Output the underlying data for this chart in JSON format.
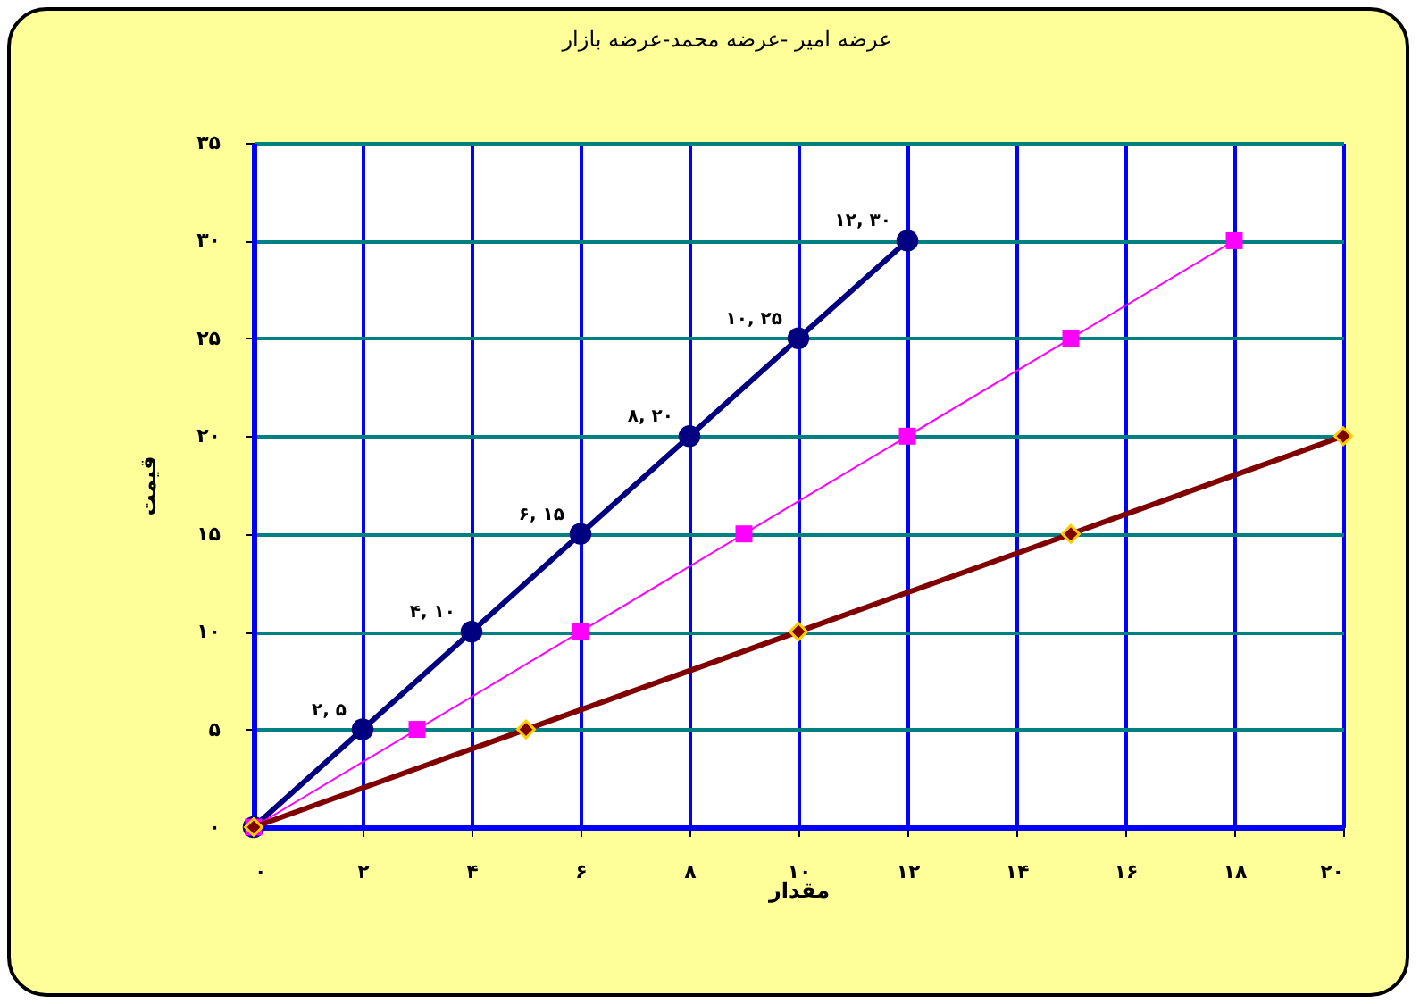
{
  "chart_data": {
    "type": "line",
    "title": "عرضه امیر -عرضه محمد-عرضه بازار",
    "xlabel": "مقدار",
    "ylabel": "قیمت",
    "xlim": [
      0,
      20
    ],
    "ylim": [
      0,
      35
    ],
    "xticks": [
      {
        "value": 0,
        "label": "۰"
      },
      {
        "value": 2,
        "label": "۲"
      },
      {
        "value": 4,
        "label": "۴"
      },
      {
        "value": 6,
        "label": "۶"
      },
      {
        "value": 8,
        "label": "۸"
      },
      {
        "value": 10,
        "label": "۱۰"
      },
      {
        "value": 12,
        "label": "۱۲"
      },
      {
        "value": 14,
        "label": "۱۴"
      },
      {
        "value": 16,
        "label": "۱۶"
      },
      {
        "value": 18,
        "label": "۱۸"
      },
      {
        "value": 20,
        "label": "۲۰"
      }
    ],
    "yticks": [
      {
        "value": 0,
        "label": "۰"
      },
      {
        "value": 5,
        "label": "۵"
      },
      {
        "value": 10,
        "label": "۱۰"
      },
      {
        "value": 15,
        "label": "۱۵"
      },
      {
        "value": 20,
        "label": "۲۰"
      },
      {
        "value": 25,
        "label": "۲۵"
      },
      {
        "value": 30,
        "label": "۳۰"
      },
      {
        "value": 35,
        "label": "۳۵"
      }
    ],
    "grid": true,
    "series": [
      {
        "color": "#000080",
        "marker": "circle",
        "x": [
          0,
          2,
          4,
          6,
          8,
          10,
          12
        ],
        "values": [
          0,
          5,
          10,
          15,
          20,
          25,
          30
        ],
        "value_labels": [
          null,
          "۲, ۵",
          "۴, ۱۰",
          "۶, ۱۵",
          "۸, ۲۰",
          "۱۰, ۲۵",
          "۱۲, ۳۰"
        ]
      },
      {
        "color": "#ff00ff",
        "marker": "square",
        "x": [
          0,
          3,
          6,
          9,
          12,
          15,
          18
        ],
        "values": [
          0,
          5,
          10,
          15,
          20,
          25,
          30
        ]
      },
      {
        "color": "#800000",
        "marker": "diamond",
        "x": [
          0,
          5,
          10,
          15,
          20
        ],
        "values": [
          0,
          5,
          10,
          15,
          20
        ]
      }
    ]
  }
}
